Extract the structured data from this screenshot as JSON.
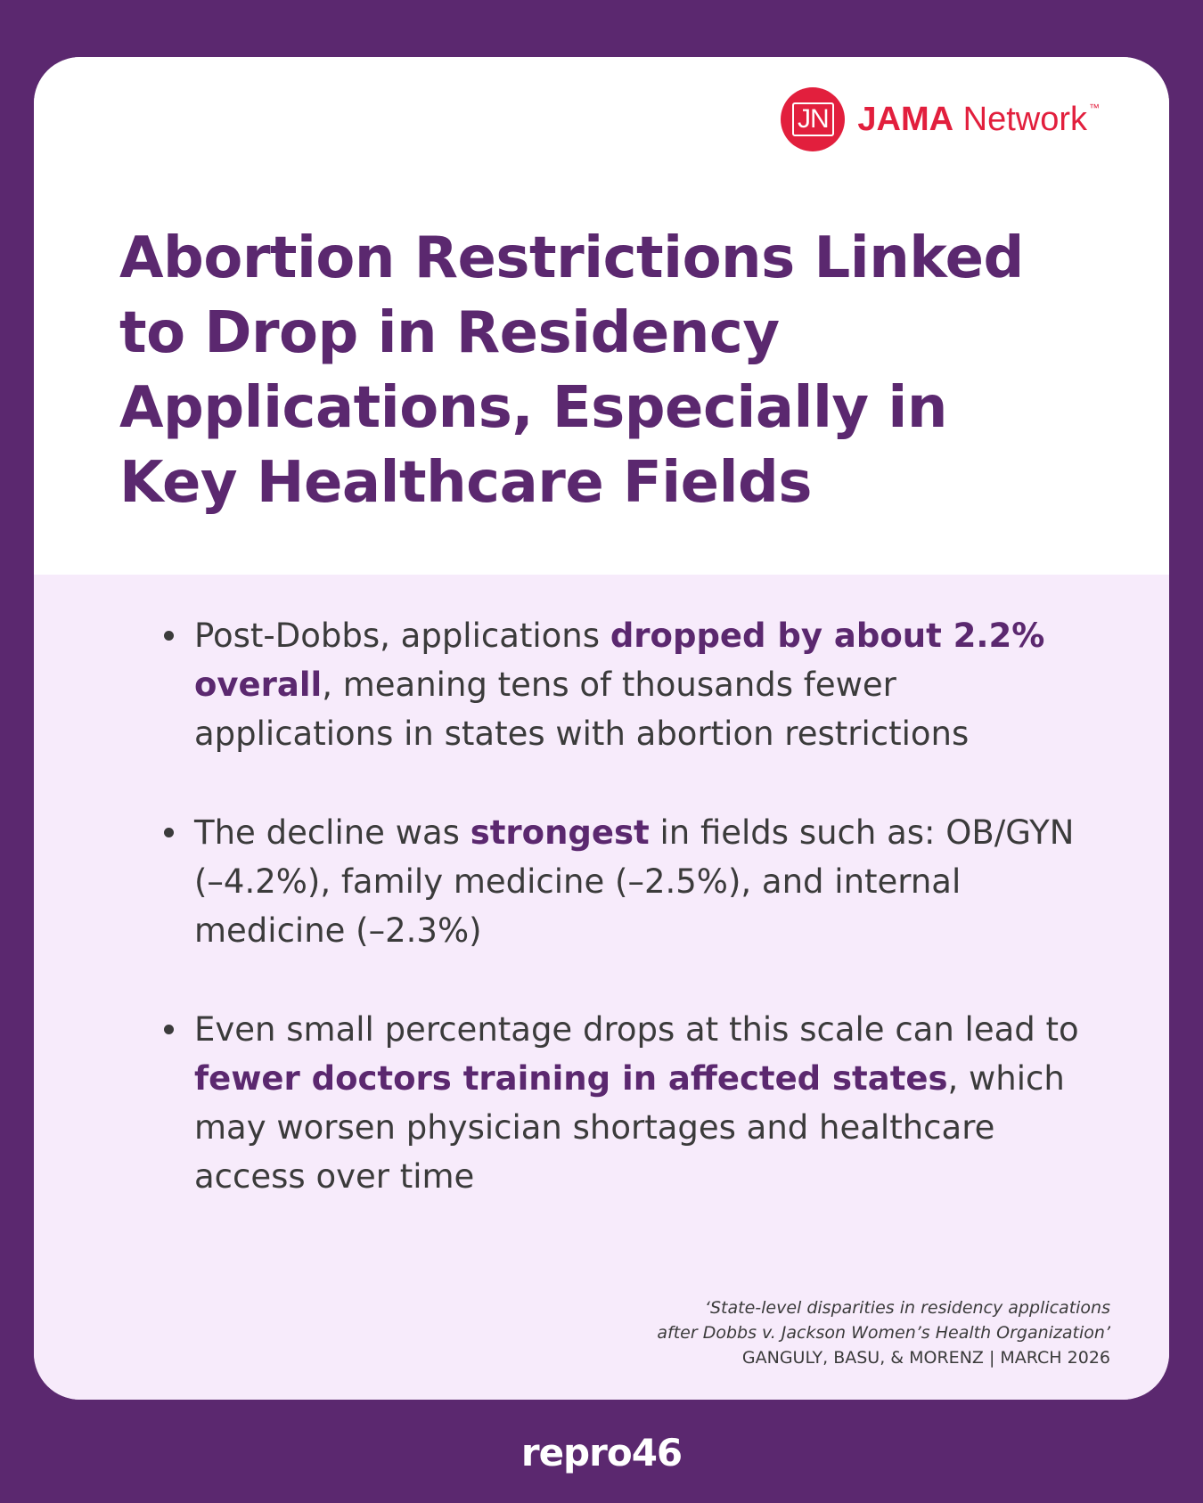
{
  "logo": {
    "badge": "JN",
    "brand_bold": "JAMA",
    "brand_regular": " Network",
    "trademark": "™"
  },
  "title": "Abortion Restrictions Linked to Drop in Residency Applications, Especially in Key Healthcare Fields",
  "bullets": [
    {
      "before": "Post-Dobbs, applications ",
      "bold": "dropped by about 2.2% overall",
      "after": ", meaning tens of thousands fewer applications in states with abortion restrictions"
    },
    {
      "before": "The decline was ",
      "bold": "strongest",
      "after": " in fields such as: OB/GYN (–4.2%), family medicine (–2.5%), and internal medicine (–2.3%)"
    },
    {
      "before": "Even small percentage drops at this scale can lead to ",
      "bold": "fewer doctors training in affected states",
      "after": ", which may worsen physician shortages and healthcare access over time"
    }
  ],
  "citation": {
    "line1": "‘State-level disparities in residency applications",
    "line2": "after Dobbs v. Jackson Women’s Health Organization’",
    "line3": "GANGULY, BASU, & MORENZ | MARCH 2026"
  },
  "footer_brand": "repro46",
  "colors": {
    "background": "#5b286f",
    "accent": "#5b286f",
    "panel": "#f7ebfb",
    "jama_red": "#e21f3d"
  }
}
